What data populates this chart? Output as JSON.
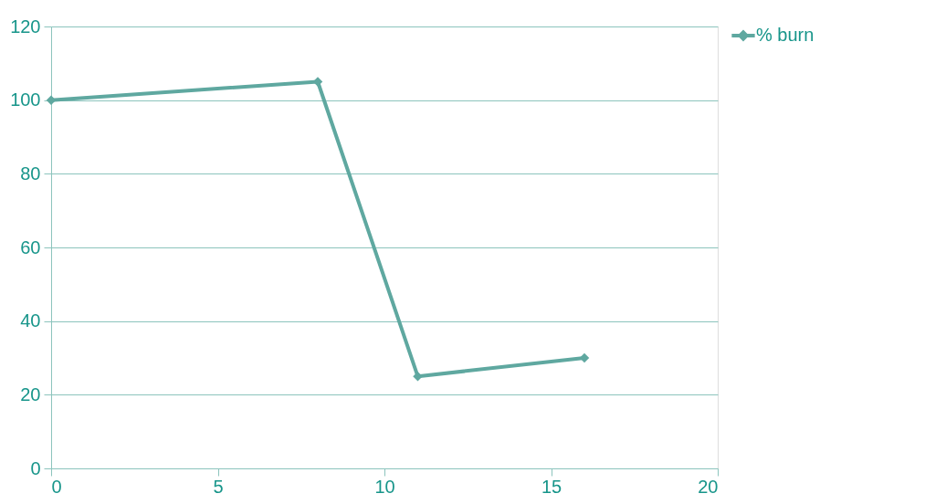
{
  "chart_data": {
    "type": "line",
    "x": [
      0,
      8,
      11,
      16
    ],
    "series": [
      {
        "name": "% burn",
        "color": "#5fa8a0",
        "values": [
          100,
          105,
          25,
          30
        ]
      }
    ],
    "xlim": [
      0,
      20
    ],
    "xticks": [
      0,
      5,
      10,
      15,
      20
    ],
    "ylim": [
      0,
      120
    ],
    "yticks": [
      0,
      20,
      40,
      60,
      80,
      100,
      120
    ],
    "grid": "y",
    "legend": "right",
    "marker": "diamond",
    "line_style": "solid"
  }
}
